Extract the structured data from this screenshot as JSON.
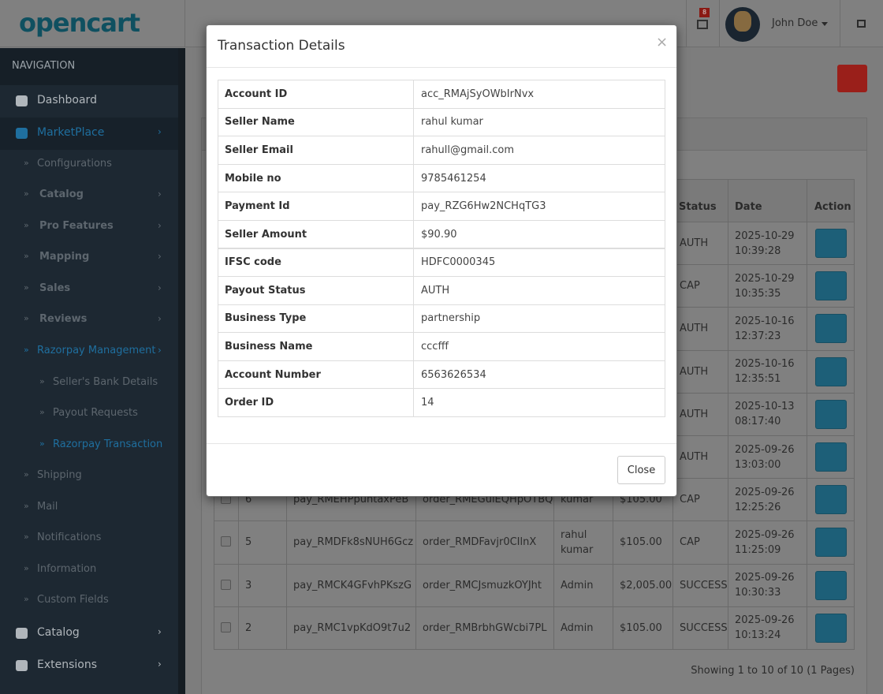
{
  "header": {
    "logo": "opencart",
    "notification_count": "8",
    "user": "John Doe"
  },
  "navigation": {
    "title": "NAVIGATION",
    "items": [
      "Dashboard",
      "MarketPlace",
      "Configurations",
      "Catalog",
      "Pro Features",
      "Mapping",
      "Sales",
      "Reviews",
      "Razorpay Management",
      "Seller's Bank Details",
      "Payout Requests",
      "Razorpay Transaction",
      "Shipping",
      "Mail",
      "Notifications",
      "Information",
      "Custom Fields",
      "Catalog",
      "Extensions"
    ]
  },
  "transactions": {
    "columns": {
      "status": "Status",
      "date": "Date",
      "action": "Action"
    },
    "rows": [
      {
        "status": "AUTH",
        "date": "2025-10-29 10:39:28"
      },
      {
        "status": "CAP",
        "date": "2025-10-29 10:35:35"
      },
      {
        "status": "AUTH",
        "date": "2025-10-16 12:37:23"
      },
      {
        "status": "AUTH",
        "date": "2025-10-16 12:35:51"
      },
      {
        "status": "AUTH",
        "date": "2025-10-13 08:17:40"
      },
      {
        "status": "AUTH",
        "date": "2025-09-26 13:03:00"
      },
      {
        "id": "6",
        "payment_id": "pay_RMEHPpuhtaxPeB",
        "order_id": "order_RMEGulEQHpOTBQ",
        "customer": "kumar",
        "amount": "$105.00",
        "status": "CAP",
        "date": "2025-09-26 12:25:26"
      },
      {
        "id": "5",
        "payment_id": "pay_RMDFk8sNUH6Gcz",
        "order_id": "order_RMDFavjr0CIlnX",
        "customer": "rahul kumar",
        "amount": "$105.00",
        "status": "CAP",
        "date": "2025-09-26 11:25:09"
      },
      {
        "id": "3",
        "payment_id": "pay_RMCK4GFvhPKszG",
        "order_id": "order_RMCJsmuzkOYJht",
        "customer": "Admin",
        "amount": "$2,005.00",
        "status": "SUCCESS",
        "date": "2025-09-26 10:30:33"
      },
      {
        "id": "2",
        "payment_id": "pay_RMC1vpKdO9t7u2",
        "order_id": "order_RMBrbhGWcbi7PL",
        "customer": "Admin",
        "amount": "$105.00",
        "status": "SUCCESS",
        "date": "2025-09-26 10:13:24"
      }
    ],
    "pagination": "Showing 1 to 10 of 10 (1 Pages)"
  },
  "modal": {
    "title": "Transaction Details",
    "close_icon": "×",
    "fields": [
      {
        "label": "Account ID",
        "value": "acc_RMAjSyOWbIrNvx"
      },
      {
        "label": "Seller Name",
        "value": "rahul kumar"
      },
      {
        "label": "Seller Email",
        "value": "rahull@gmail.com"
      },
      {
        "label": "Mobile no",
        "value": "9785461254"
      },
      {
        "label": "Payment Id",
        "value": "pay_RZG6Hw2NCHqTG3"
      },
      {
        "label": "Seller Amount",
        "value": "$90.90"
      },
      {
        "label": "IFSC code",
        "value": "HDFC0000345"
      },
      {
        "label": "Payout Status",
        "value": "AUTH"
      },
      {
        "label": "Business Type",
        "value": "partnership"
      },
      {
        "label": "Business Name",
        "value": "cccfff"
      },
      {
        "label": "Account Number",
        "value": "6563626534"
      },
      {
        "label": "Order ID",
        "value": "14"
      }
    ],
    "close_button": "Close"
  }
}
